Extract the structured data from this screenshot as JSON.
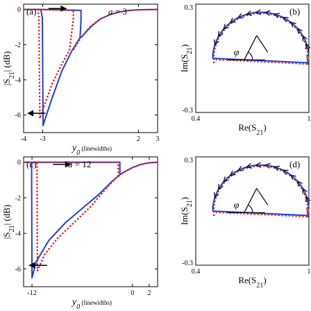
{
  "chart_data": [
    {
      "id": "a",
      "type": "line",
      "panel_label": "(a)",
      "annotation": "a = 3",
      "annotation_var": "a",
      "annotation_value": "3",
      "xlabel_var": "y",
      "xlabel_sub": "0",
      "xlabel_unit": "(linewidths)",
      "ylabel_prefix": "|S",
      "ylabel_sub": "21",
      "ylabel_suffix": "| (dB)",
      "xlim": [
        -4,
        3
      ],
      "ylim": [
        -7,
        0.3
      ],
      "xticks": [
        -4,
        -3,
        2,
        3
      ],
      "xtick_labels": [
        "-4",
        "-3",
        "2",
        "3"
      ],
      "yticks": [
        0,
        -2,
        -4,
        -6
      ],
      "ytick_labels": [
        "0",
        "-2",
        "-4",
        "-6"
      ],
      "arrows": [
        {
          "direction": "right",
          "x": -2.7,
          "y": 0.05
        },
        {
          "direction": "left",
          "x": -2.85,
          "y": -5.9
        }
      ],
      "series": [
        {
          "color": "#1f3fd6",
          "style": "solid",
          "points": [
            [
              -4,
              0
            ],
            [
              -3.1,
              0
            ],
            [
              -3.02,
              -0.5
            ],
            [
              -2.98,
              -6.6
            ],
            [
              -2.9,
              -6.3
            ],
            [
              -2.5,
              -5.0
            ],
            [
              -2.0,
              -3.5
            ],
            [
              -1.5,
              -2.4
            ],
            [
              -1.05,
              -1.6
            ],
            [
              -1.0,
              -0.6
            ],
            [
              -1.0,
              -0.05
            ],
            [
              -3.1,
              0
            ]
          ]
        },
        {
          "color": "#1f3fd6",
          "style": "solid",
          "points": [
            [
              -1.0,
              -1.6
            ],
            [
              -0.5,
              -1.0
            ],
            [
              0,
              -0.55
            ],
            [
              0.5,
              -0.3
            ],
            [
              1.0,
              -0.14
            ],
            [
              1.5,
              -0.06
            ],
            [
              2.0,
              -0.02
            ],
            [
              3.0,
              0
            ]
          ]
        },
        {
          "color": "#e8141c",
          "style": "dotted",
          "points": [
            [
              -4,
              0
            ],
            [
              -3.25,
              0
            ],
            [
              -3.2,
              -0.5
            ],
            [
              -3.15,
              -6.2
            ],
            [
              -3.0,
              -5.7
            ],
            [
              -2.5,
              -4.2
            ],
            [
              -2.0,
              -3.1
            ],
            [
              -1.6,
              -2.3
            ],
            [
              -1.4,
              -0.5
            ],
            [
              -1.4,
              -0.05
            ],
            [
              -3.25,
              0
            ]
          ]
        },
        {
          "color": "#e8141c",
          "style": "dotted",
          "points": [
            [
              -1.4,
              -2.3
            ],
            [
              -1.0,
              -1.6
            ],
            [
              -0.5,
              -0.95
            ],
            [
              0,
              -0.55
            ],
            [
              0.5,
              -0.3
            ],
            [
              1.0,
              -0.14
            ],
            [
              1.5,
              -0.06
            ],
            [
              2.0,
              -0.02
            ],
            [
              3.0,
              0
            ]
          ]
        }
      ]
    },
    {
      "id": "b",
      "type": "line",
      "panel_label": "(b)",
      "phi_label": "φ",
      "xlabel_prefix": "Re(S",
      "xlabel_sub": "21",
      "xlabel_suffix": ")",
      "ylabel_prefix": "Im(S",
      "ylabel_sub": "21",
      "ylabel_suffix": ")",
      "xlim": [
        0.4,
        1.0
      ],
      "ylim": [
        -0.3,
        0.3
      ],
      "xticks": [
        0.4,
        1.0
      ],
      "xtick_labels": [
        "0.4",
        "1"
      ],
      "yticks": [
        0.3,
        -0.3
      ],
      "ytick_labels": [
        "0.3",
        "-0.3"
      ],
      "circle": {
        "center": [
          0.745,
          0.0
        ],
        "radius": 0.255
      },
      "chord_start": 0.49,
      "chord_end": 0.998,
      "blue_arc_deg": [
        3,
        178
      ],
      "red_arc_deg": [
        3,
        188
      ],
      "arrow_count": 14,
      "arrow_arc_deg": [
        15,
        160
      ]
    },
    {
      "id": "c",
      "type": "line",
      "panel_label": "(c)",
      "annotation": "a = 12",
      "annotation_var": "a",
      "annotation_value": "12",
      "xlabel_var": "y",
      "xlabel_sub": "0",
      "xlabel_unit": "(linewidths)",
      "ylabel_prefix": "|S",
      "ylabel_sub": "21",
      "ylabel_suffix": "| (dB)",
      "xlim": [
        -13,
        3
      ],
      "ylim": [
        -7,
        0.3
      ],
      "xticks": [
        -12,
        0,
        2
      ],
      "xtick_labels": [
        "-12",
        "0",
        "2"
      ],
      "yticks": [
        0,
        -2,
        -4,
        -6
      ],
      "ytick_labels": [
        "0",
        "-2",
        "-4",
        "-6"
      ],
      "arrows": [
        {
          "direction": "right",
          "x": -9.5,
          "y": -0.12
        },
        {
          "direction": "left",
          "x": -10.2,
          "y": -5.8
        }
      ],
      "series": [
        {
          "color": "#1f3fd6",
          "style": "solid",
          "points": [
            [
              -13,
              0
            ],
            [
              -12.05,
              0
            ],
            [
              -12.0,
              -6.5
            ],
            [
              -11.5,
              -5.6
            ],
            [
              -10.0,
              -4.4
            ],
            [
              -8.0,
              -3.4
            ],
            [
              -6.0,
              -2.6
            ],
            [
              -4.0,
              -1.8
            ],
            [
              -2.5,
              -1.1
            ],
            [
              -2.0,
              -0.9
            ],
            [
              -1.5,
              -0.7
            ],
            [
              -1.0,
              -0.55
            ],
            [
              0,
              -0.3
            ],
            [
              1.0,
              -0.12
            ],
            [
              2.0,
              -0.03
            ],
            [
              3.0,
              0
            ]
          ]
        },
        {
          "color": "#1f3fd6",
          "style": "solid",
          "points": [
            [
              -12.05,
              0
            ],
            [
              -1.5,
              0
            ],
            [
              -1.5,
              -0.7
            ]
          ]
        },
        {
          "color": "#e8141c",
          "style": "dotted",
          "points": [
            [
              -13,
              0
            ],
            [
              -11.4,
              0
            ],
            [
              -11.35,
              -6.1
            ],
            [
              -10.5,
              -5.2
            ],
            [
              -9.0,
              -4.3
            ],
            [
              -7.0,
              -3.4
            ],
            [
              -5.0,
              -2.5
            ],
            [
              -3.0,
              -1.4
            ],
            [
              -2.0,
              -0.9
            ],
            [
              -1.0,
              -0.55
            ],
            [
              0,
              -0.3
            ],
            [
              1.0,
              -0.12
            ],
            [
              2.0,
              -0.03
            ],
            [
              3.0,
              0
            ]
          ]
        },
        {
          "color": "#e8141c",
          "style": "dotted",
          "points": [
            [
              -11.4,
              0
            ],
            [
              -1.7,
              0
            ],
            [
              -1.7,
              -0.78
            ]
          ]
        }
      ]
    },
    {
      "id": "d",
      "type": "line",
      "panel_label": "(d)",
      "phi_label": "φ",
      "xlabel_prefix": "Re(S",
      "xlabel_sub": "21",
      "xlabel_suffix": ")",
      "ylabel_prefix": "Im(S",
      "ylabel_sub": "21",
      "ylabel_suffix": ")",
      "xlim": [
        0.4,
        1.0
      ],
      "ylim": [
        -0.3,
        0.3
      ],
      "xticks": [
        0.4,
        1.0
      ],
      "xtick_labels": [
        "0.4",
        "1"
      ],
      "yticks": [
        0.3,
        -0.3
      ],
      "ytick_labels": [
        "0.3",
        "-0.3"
      ],
      "circle": {
        "center": [
          0.745,
          0.0
        ],
        "radius": 0.255
      },
      "chord_start": 0.49,
      "chord_end": 0.998,
      "blue_arc_deg": [
        3,
        178
      ],
      "red_arc_deg": [
        3,
        188
      ],
      "arrow_count": 14,
      "arrow_arc_deg": [
        15,
        160
      ]
    }
  ]
}
